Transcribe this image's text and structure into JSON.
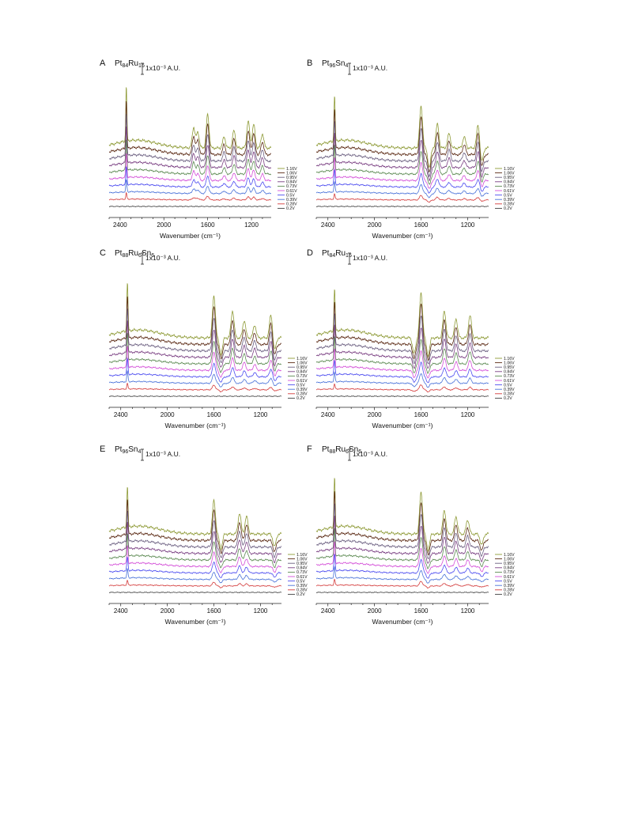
{
  "chart_data": [
    {
      "type": "line",
      "panel": "A",
      "title_parts": [
        [
          "Pt",
          false
        ],
        [
          "84",
          true
        ],
        [
          "Ru",
          false
        ],
        [
          "16",
          true
        ]
      ],
      "xlabel": "Wavenumber (cm⁻¹)",
      "xlim": [
        2500,
        1020
      ],
      "x_ticks": [
        "2400",
        "2000",
        "1600",
        "1200"
      ],
      "scale_bar": "1x10⁻³ A.U.",
      "potentials": [
        "1.16V",
        "1.06V",
        "0.95V",
        "0.84V",
        "0.73V",
        "0.61V",
        "0.5V",
        "0.39V",
        "0.28V",
        "0.2V"
      ],
      "peaks": [
        {
          "x": 2343,
          "max": 70
        },
        {
          "x": 1728,
          "max": 26
        },
        {
          "x": 1690,
          "max": 20
        },
        {
          "x": 1600,
          "max": 42
        },
        {
          "x": 1450,
          "max": 14
        },
        {
          "x": 1360,
          "max": 22
        },
        {
          "x": 1230,
          "max": 34
        },
        {
          "x": 1180,
          "max": 30
        },
        {
          "x": 1100,
          "max": 18
        }
      ]
    },
    {
      "type": "line",
      "panel": "B",
      "title_parts": [
        [
          "Pt",
          false
        ],
        [
          "96",
          true
        ],
        [
          "Sn",
          false
        ],
        [
          "4",
          true
        ]
      ],
      "xlabel": "Wavenumber (cm⁻¹)",
      "xlim": [
        2500,
        1020
      ],
      "x_ticks": [
        "2400",
        "2000",
        "1600",
        "1200"
      ],
      "scale_bar": "1x10⁻³ A.U.",
      "potentials": [
        "1.16V",
        "1.06V",
        "0.95V",
        "0.84V",
        "0.73V",
        "0.61V",
        "0.5V",
        "0.39V",
        "0.28V",
        "0.2V"
      ],
      "peaks": [
        {
          "x": 2343,
          "max": 58
        },
        {
          "x": 1600,
          "max": 52
        },
        {
          "x": 1530,
          "max": -24
        },
        {
          "x": 1460,
          "max": 30
        },
        {
          "x": 1360,
          "max": 18
        },
        {
          "x": 1230,
          "max": 14
        },
        {
          "x": 1110,
          "max": 30
        },
        {
          "x": 1080,
          "max": -18
        }
      ]
    },
    {
      "type": "line",
      "panel": "C",
      "title_parts": [
        [
          "Pt",
          false
        ],
        [
          "88",
          true
        ],
        [
          "Ru",
          false
        ],
        [
          "6",
          true
        ],
        [
          "Sn",
          false
        ],
        [
          "6",
          true
        ]
      ],
      "xlabel": "Wavenumber (cm⁻¹)",
      "xlim": [
        2500,
        1020
      ],
      "x_ticks": [
        "2400",
        "2000",
        "1600",
        "1200"
      ],
      "scale_bar": "1x10⁻³ A.U.",
      "potentials": [
        "1.16V",
        "1.06V",
        "0.95V",
        "0.84V",
        "0.73V",
        "0.61V",
        "0.5V",
        "0.39V",
        "0.28V",
        "0.2V"
      ],
      "peaks": [
        {
          "x": 2343,
          "max": 62
        },
        {
          "x": 1600,
          "max": 52
        },
        {
          "x": 1540,
          "max": -20
        },
        {
          "x": 1440,
          "max": 34
        },
        {
          "x": 1340,
          "max": 22
        },
        {
          "x": 1250,
          "max": 16
        },
        {
          "x": 1110,
          "max": 30
        },
        {
          "x": 1080,
          "max": -16
        }
      ]
    },
    {
      "type": "line",
      "panel": "D",
      "title_parts": [
        [
          "Pt",
          false
        ],
        [
          "84",
          true
        ],
        [
          "Ru",
          false
        ],
        [
          "16",
          true
        ]
      ],
      "xlabel": "Wavenumber (cm⁻¹)",
      "xlim": [
        2500,
        1020
      ],
      "x_ticks": [
        "2400",
        "2000",
        "1600",
        "1200"
      ],
      "scale_bar": "1x10⁻³ A.U.",
      "potentials": [
        "1.16V",
        "1.06V",
        "0.95V",
        "0.84V",
        "0.73V",
        "0.61V",
        "0.5V",
        "0.39V",
        "0.28V",
        "0.2V"
      ],
      "peaks": [
        {
          "x": 2343,
          "max": 54
        },
        {
          "x": 1600,
          "max": 56
        },
        {
          "x": 1660,
          "max": -20
        },
        {
          "x": 1540,
          "max": -22
        },
        {
          "x": 1400,
          "max": 34
        },
        {
          "x": 1300,
          "max": 24
        },
        {
          "x": 1180,
          "max": 28
        }
      ]
    },
    {
      "type": "line",
      "panel": "E",
      "title_parts": [
        [
          "Pt",
          false
        ],
        [
          "96",
          true
        ],
        [
          "Sn",
          false
        ],
        [
          "4",
          true
        ]
      ],
      "xlabel": "Wavenumber (cm⁻¹)",
      "xlim": [
        2500,
        1020
      ],
      "x_ticks": [
        "2400",
        "2000",
        "1600",
        "1200"
      ],
      "scale_bar": "1x10⁻³ A.U.",
      "potentials": [
        "1.16V",
        "1.06V",
        "0.95V",
        "0.84V",
        "0.73V",
        "0.61V",
        "0.5V",
        "0.39V",
        "0.28V",
        "0.2V"
      ],
      "peaks": [
        {
          "x": 2343,
          "max": 52
        },
        {
          "x": 1600,
          "max": 42
        },
        {
          "x": 1540,
          "max": -18
        },
        {
          "x": 1380,
          "max": 26
        },
        {
          "x": 1320,
          "max": 22
        },
        {
          "x": 1080,
          "max": -16
        }
      ]
    },
    {
      "type": "line",
      "panel": "F",
      "title_parts": [
        [
          "Pt",
          false
        ],
        [
          "88",
          true
        ],
        [
          "Ru",
          false
        ],
        [
          "6",
          true
        ],
        [
          "Sn",
          false
        ],
        [
          "6",
          true
        ]
      ],
      "xlabel": "Wavenumber (cm⁻¹)",
      "xlim": [
        2500,
        1020
      ],
      "x_ticks": [
        "2400",
        "2000",
        "1600",
        "1200"
      ],
      "scale_bar": "1x10⁻³ A.U.",
      "potentials": [
        "1.16V",
        "1.06V",
        "0.95V",
        "0.84V",
        "0.73V",
        "0.61V",
        "0.5V",
        "0.39V",
        "0.28V",
        "0.2V"
      ],
      "peaks": [
        {
          "x": 2343,
          "max": 64
        },
        {
          "x": 1600,
          "max": 52
        },
        {
          "x": 1540,
          "max": -20
        },
        {
          "x": 1400,
          "max": 30
        },
        {
          "x": 1300,
          "max": 22
        },
        {
          "x": 1200,
          "max": 18
        },
        {
          "x": 1080,
          "max": -14
        }
      ]
    }
  ],
  "series_colors": [
    "#8e9a36",
    "#5b2a14",
    "#6b5f80",
    "#7a3f82",
    "#5c8a52",
    "#d44fd8",
    "#4d4df0",
    "#4b73d9",
    "#d43c3c",
    "#404040"
  ]
}
